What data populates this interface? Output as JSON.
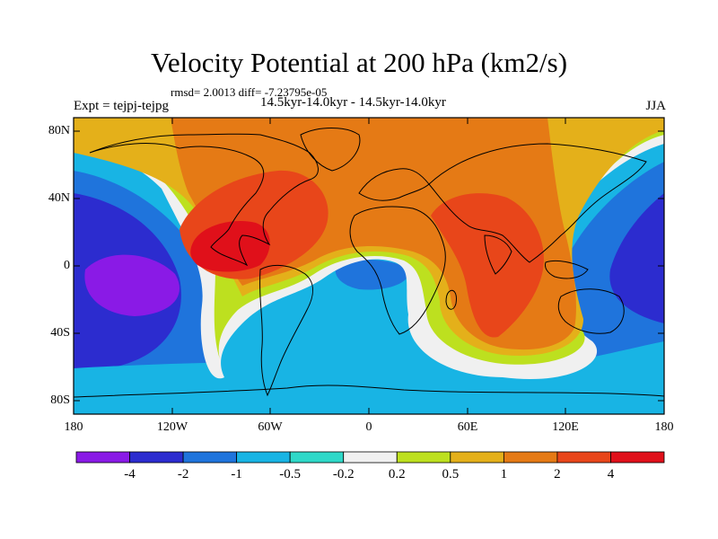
{
  "title": "Velocity Potential at 200 hPa (km2/s)",
  "stats_line": "rmsd= 2.0013  diff= -7.23795e-05",
  "expt_label": "Expt = tejpj-tejpg",
  "subtitle": "14.5kyr-14.0kyr - 14.5kyr-14.0kyr",
  "season": "JJA",
  "lat_ticks": [
    "80N",
    "40N",
    "0",
    "40S",
    "80S"
  ],
  "lon_ticks": [
    "180",
    "120W",
    "60W",
    "0",
    "60E",
    "120E",
    "180"
  ],
  "colorbar": {
    "labels": [
      "-4",
      "-2",
      "-1",
      "-0.5",
      "-0.2",
      "0.2",
      "0.5",
      "1",
      "2",
      "4"
    ],
    "colors": [
      "#8a1ae6",
      "#2c2ccf",
      "#1f74dc",
      "#18b4e4",
      "#2fd8c8",
      "#f0f0f0",
      "#bde01f",
      "#e4b01a",
      "#e57a15",
      "#e8461a",
      "#e0101a"
    ]
  }
}
